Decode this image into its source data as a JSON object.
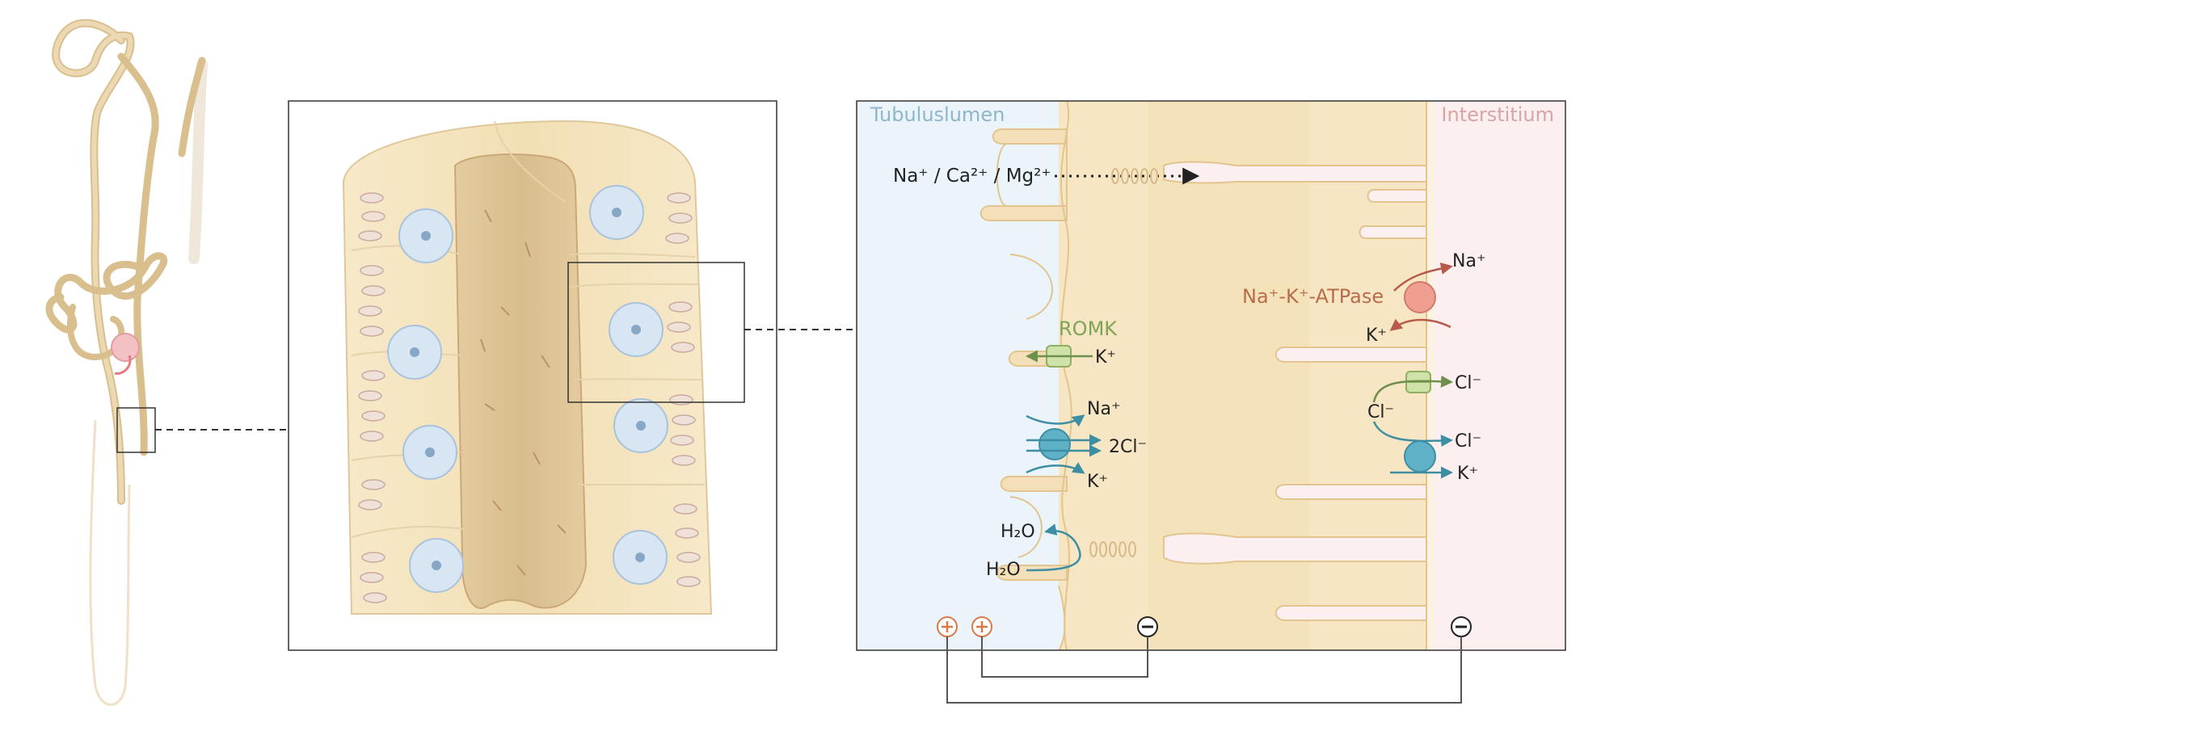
{
  "labels": {
    "lumen": "Tubuluslumen",
    "interstitium": "Interstitium",
    "paracellular_ions": "Na⁺ / Ca²⁺ / Mg²⁺",
    "romk": "ROMK",
    "romk_k": "K⁺",
    "nkcc_na": "Na⁺",
    "nkcc_cl": "2Cl⁻",
    "nkcc_k": "K⁺",
    "atpase": "Na⁺-K⁺-ATPase",
    "atpase_na": "Na⁺",
    "atpase_k": "K⁺",
    "clc_cl": "Cl⁻",
    "cl_mid": "Cl⁻",
    "kcc_cl": "Cl⁻",
    "kcc_k": "K⁺",
    "h2o_top": "H₂O",
    "h2o_bottom": "H₂O"
  },
  "colors": {
    "lumen_bg": "#eaf4fa",
    "interstitium_bg": "#fbeff0",
    "cell": "#f6e7c8",
    "tubule": "#e2c89a",
    "nucleus": "#d8e6f3",
    "romk": "#9bbf6e",
    "nkcc": "#5fb1c7",
    "atpase": "#ef9e90",
    "lumen_text": "#8fb5cc",
    "interstitium_text": "#d9a4a4",
    "romk_text": "#7ea457",
    "atpase_text": "#b96c4a",
    "plus_sign": "#d87a48"
  },
  "icons": {
    "positive": "plus-circle-icon",
    "negative": "minus-circle-icon"
  }
}
